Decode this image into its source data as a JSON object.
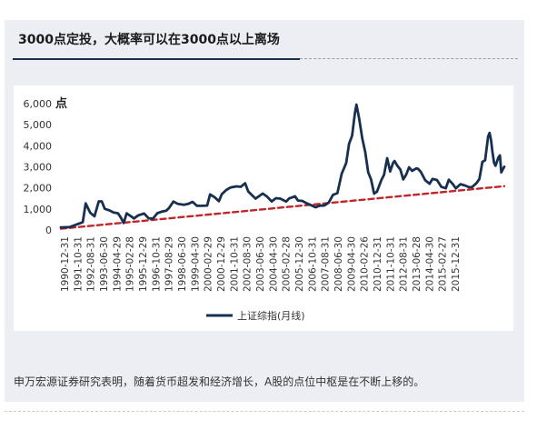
{
  "headline": "3000点定投，大概率可以在3000点以上离场",
  "caption": "申万宏源证券研究表明，随着货币超发和经济增长，A股的点位中枢是在不断上移的。",
  "chart_data": {
    "type": "line",
    "ylabel": "点",
    "ylim": [
      0,
      6000
    ],
    "y_ticks": [
      0,
      1000,
      2000,
      3000,
      4000,
      5000,
      6000
    ],
    "y_tick_labels": [
      "0",
      "1,000",
      "2,000",
      "3,000",
      "4,000",
      "5,000",
      "6,000"
    ],
    "x_tick_labels": [
      "1990-12-31",
      "1991-10-31",
      "1992-08-31",
      "1993-06-30",
      "1994-04-29",
      "1995-02-28",
      "1995-12-29",
      "1996-10-31",
      "1997-08-29",
      "1998-06-30",
      "1999-04-30",
      "2000-02-29",
      "2000-12-29",
      "2001-10-31",
      "2002-08-30",
      "2003-06-30",
      "2004-04-30",
      "2005-02-28",
      "2005-12-30",
      "2006-10-31",
      "2007-08-31",
      "2008-06-30",
      "2009-04-30",
      "2010-02-26",
      "2010-12-31",
      "2011-10-31",
      "2012-08-31",
      "2013-06-28",
      "2014-04-30",
      "2015-02-27",
      "2015-12-31"
    ],
    "grid": false,
    "legend_position": "bottom",
    "series": [
      {
        "name": "上证综指(月线)",
        "color": "#17304f",
        "points": [
          [
            "1990-12-31",
            127
          ],
          [
            "1991-06-30",
            137
          ],
          [
            "1991-12-31",
            292
          ],
          [
            "1992-03-31",
            370
          ],
          [
            "1992-05-29",
            1266
          ],
          [
            "1992-08-31",
            823
          ],
          [
            "1992-11-30",
            650
          ],
          [
            "1993-02-26",
            1359
          ],
          [
            "1993-04-30",
            1358
          ],
          [
            "1993-06-30",
            1007
          ],
          [
            "1993-09-30",
            936
          ],
          [
            "1993-12-31",
            833
          ],
          [
            "1994-03-31",
            793
          ],
          [
            "1994-05-31",
            590
          ],
          [
            "1994-07-29",
            334
          ],
          [
            "1994-09-30",
            788
          ],
          [
            "1994-12-30",
            648
          ],
          [
            "1995-02-28",
            549
          ],
          [
            "1995-05-31",
            700
          ],
          [
            "1995-09-29",
            780
          ],
          [
            "1995-12-29",
            555
          ],
          [
            "1996-03-29",
            540
          ],
          [
            "1996-06-28",
            800
          ],
          [
            "1996-09-30",
            870
          ],
          [
            "1996-12-31",
            917
          ],
          [
            "1997-02-28",
            1050
          ],
          [
            "1997-05-30",
            1350
          ],
          [
            "1997-08-29",
            1240
          ],
          [
            "1997-12-31",
            1194
          ],
          [
            "1998-03-31",
            1240
          ],
          [
            "1998-06-30",
            1340
          ],
          [
            "1998-09-30",
            1150
          ],
          [
            "1998-12-31",
            1147
          ],
          [
            "1999-04-30",
            1160
          ],
          [
            "1999-06-30",
            1690
          ],
          [
            "1999-09-30",
            1560
          ],
          [
            "1999-12-31",
            1367
          ],
          [
            "2000-02-29",
            1700
          ],
          [
            "2000-05-31",
            1900
          ],
          [
            "2000-08-31",
            2020
          ],
          [
            "2000-12-29",
            2073
          ],
          [
            "2001-03-30",
            2050
          ],
          [
            "2001-06-29",
            2218
          ],
          [
            "2001-08-31",
            1830
          ],
          [
            "2001-10-31",
            1690
          ],
          [
            "2002-01-31",
            1490
          ],
          [
            "2002-06-28",
            1730
          ],
          [
            "2002-09-30",
            1580
          ],
          [
            "2002-12-31",
            1357
          ],
          [
            "2003-03-31",
            1510
          ],
          [
            "2003-06-30",
            1490
          ],
          [
            "2003-10-31",
            1350
          ],
          [
            "2003-12-31",
            1497
          ],
          [
            "2004-04-30",
            1600
          ],
          [
            "2004-06-30",
            1400
          ],
          [
            "2004-09-30",
            1380
          ],
          [
            "2004-12-31",
            1266
          ],
          [
            "2005-03-31",
            1180
          ],
          [
            "2005-06-30",
            1080
          ],
          [
            "2005-09-30",
            1155
          ],
          [
            "2005-12-30",
            1161
          ],
          [
            "2006-03-31",
            1300
          ],
          [
            "2006-06-30",
            1670
          ],
          [
            "2006-09-29",
            1750
          ],
          [
            "2006-12-29",
            2675
          ],
          [
            "2007-03-30",
            3180
          ],
          [
            "2007-05-31",
            4100
          ],
          [
            "2007-07-31",
            4470
          ],
          [
            "2007-09-28",
            5550
          ],
          [
            "2007-10-31",
            5954
          ],
          [
            "2007-12-28",
            5261
          ],
          [
            "2008-02-29",
            4350
          ],
          [
            "2008-04-30",
            3690
          ],
          [
            "2008-06-30",
            2740
          ],
          [
            "2008-08-29",
            2400
          ],
          [
            "2008-10-31",
            1728
          ],
          [
            "2008-12-31",
            1820
          ],
          [
            "2009-03-31",
            2370
          ],
          [
            "2009-05-27",
            2630
          ],
          [
            "2009-07-31",
            3412
          ],
          [
            "2009-09-30",
            2780
          ],
          [
            "2009-11-30",
            3190
          ],
          [
            "2009-12-31",
            3277
          ],
          [
            "2010-02-26",
            3050
          ],
          [
            "2010-04-30",
            2870
          ],
          [
            "2010-06-30",
            2398
          ],
          [
            "2010-08-31",
            2638
          ],
          [
            "2010-10-29",
            2978
          ],
          [
            "2010-12-31",
            2808
          ],
          [
            "2011-03-31",
            2928
          ],
          [
            "2011-04-29",
            2911
          ],
          [
            "2011-06-30",
            2762
          ],
          [
            "2011-09-30",
            2359
          ],
          [
            "2011-12-30",
            2199
          ],
          [
            "2012-02-29",
            2428
          ],
          [
            "2012-05-31",
            2372
          ],
          [
            "2012-08-31",
            2047
          ],
          [
            "2012-11-30",
            1980
          ],
          [
            "2013-01-31",
            2385
          ],
          [
            "2013-04-26",
            2177
          ],
          [
            "2013-06-28",
            1979
          ],
          [
            "2013-09-30",
            2174
          ],
          [
            "2013-12-31",
            2116
          ],
          [
            "2014-03-31",
            2033
          ],
          [
            "2014-05-30",
            2039
          ],
          [
            "2014-08-29",
            2217
          ],
          [
            "2014-10-31",
            2420
          ],
          [
            "2014-12-31",
            3234
          ],
          [
            "2015-02-27",
            3310
          ],
          [
            "2015-04-30",
            4441
          ],
          [
            "2015-05-29",
            4611
          ],
          [
            "2015-06-30",
            4277
          ],
          [
            "2015-07-31",
            3663
          ],
          [
            "2015-08-31",
            3205
          ],
          [
            "2015-09-30",
            3052
          ],
          [
            "2015-11-30",
            3445
          ],
          [
            "2015-12-31",
            3539
          ],
          [
            "2016-01-29",
            2737
          ],
          [
            "2016-03-31",
            3003
          ]
        ]
      },
      {
        "name": "",
        "color": "#c0262a",
        "style": "dashed",
        "points": [
          [
            "1990-12-31",
            60
          ],
          [
            "2016-03-31",
            2080
          ]
        ]
      }
    ]
  }
}
